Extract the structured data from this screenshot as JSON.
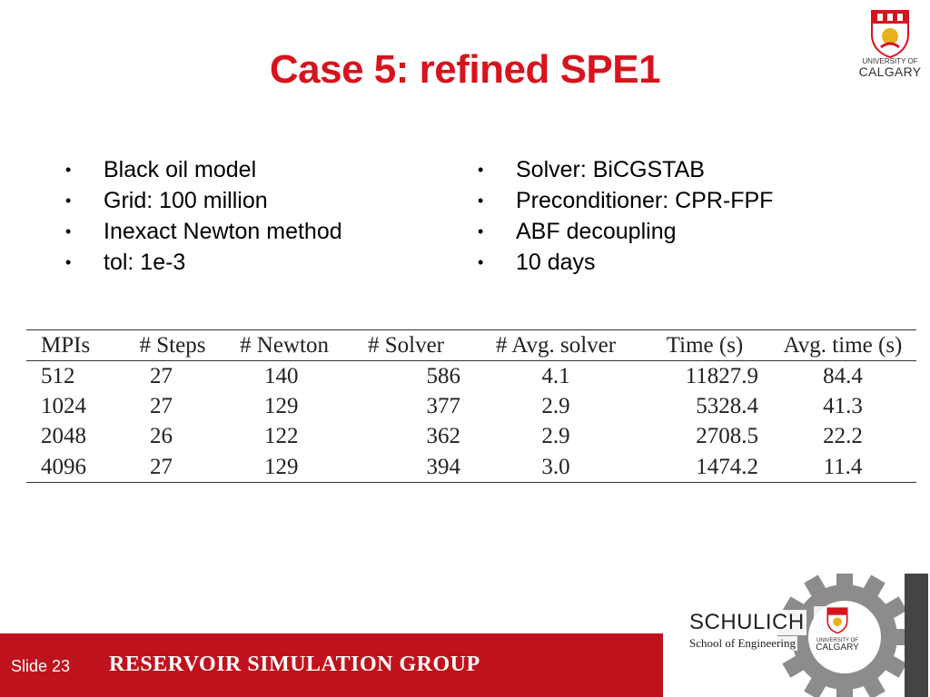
{
  "slide": {
    "title": "Case 5: refined SPE1",
    "left_bullets": [
      "Black oil model",
      "Grid: 100 million",
      "Inexact Newton method",
      "tol: 1e-3"
    ],
    "right_bullets": [
      "Solver: BiCGSTAB",
      "Preconditioner: CPR-FPF",
      "ABF decoupling",
      "10 days"
    ],
    "bullet_glyph": "•"
  },
  "table": {
    "headers": [
      "MPIs",
      "# Steps",
      "# Newton",
      "# Solver",
      "# Avg. solver",
      "Time (s)",
      "Avg. time (s)"
    ],
    "rows": [
      [
        "512",
        "27",
        "140",
        "586",
        "4.1",
        "11827.9",
        "84.4"
      ],
      [
        "1024",
        "27",
        "129",
        "377",
        "2.9",
        "5328.4",
        "41.3"
      ],
      [
        "2048",
        "26",
        "122",
        "362",
        "2.9",
        "2708.5",
        "22.2"
      ],
      [
        "4096",
        "27",
        "129",
        "394",
        "3.0",
        "1474.2",
        "11.4"
      ]
    ]
  },
  "logo": {
    "university_line1": "UNIVERSITY OF",
    "university_line2": "CALGARY"
  },
  "footer": {
    "slide_number": "Slide 23",
    "group_name": "RESERVOIR SIMULATION GROUP",
    "bar_color": "#c0121c"
  },
  "schulich_logo": {
    "name": "SCHULICH",
    "subtitle": "School of Engineering",
    "mini_line1": "UNIVERSITY OF",
    "mini_line2": "CALGARY"
  },
  "colors": {
    "title": "#d7141e",
    "shield_red": "#d7141e",
    "shield_gold": "#e8b21c"
  }
}
